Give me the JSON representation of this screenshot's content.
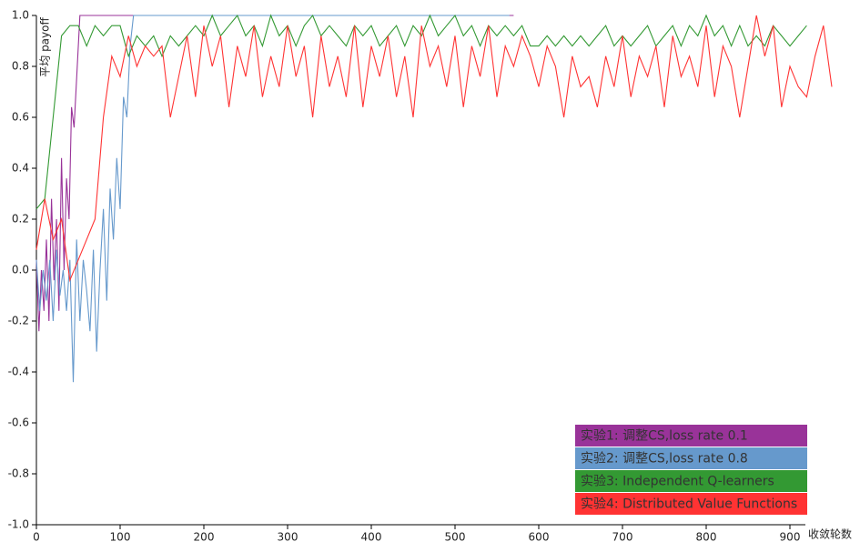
{
  "chart_data": {
    "type": "line",
    "ylabel": "平均 payoff",
    "xlabel": "收敛轮数",
    "xlim": [
      0,
      960
    ],
    "ylim": [
      -1.0,
      1.0
    ],
    "xticks": [
      0,
      100,
      200,
      300,
      400,
      500,
      600,
      700,
      800,
      900
    ],
    "yticks": [
      {
        "value": -1.0,
        "label": "-1.0"
      },
      -0.8,
      -0.6,
      -0.4,
      -0.2,
      {
        "value": 0.0,
        "label": "0.0"
      },
      0.2,
      0.4,
      0.6,
      0.8,
      {
        "value": 1.0,
        "label": "1.0"
      }
    ],
    "legend": "lower right",
    "series": [
      {
        "name": "实验1: 调整CS,loss rate 0.1",
        "color": "#993399",
        "x": [
          0,
          3,
          6,
          9,
          12,
          15,
          18,
          21,
          24,
          27,
          30,
          33,
          36,
          39,
          42,
          45,
          52,
          570
        ],
        "values": [
          0.04,
          -0.24,
          0.0,
          -0.16,
          0.12,
          -0.2,
          0.28,
          -0.04,
          0.2,
          -0.16,
          0.44,
          0.0,
          0.36,
          0.2,
          0.64,
          0.56,
          1.0,
          1.0
        ]
      },
      {
        "name": "实验2: 调整CS,loss rate 0.8",
        "color": "#6699cc",
        "x": [
          0,
          4,
          8,
          12,
          16,
          20,
          24,
          28,
          32,
          36,
          40,
          44,
          48,
          52,
          56,
          60,
          64,
          68,
          72,
          76,
          80,
          84,
          88,
          92,
          96,
          100,
          104,
          108,
          112,
          116,
          565
        ],
        "values": [
          0.04,
          -0.16,
          0.0,
          -0.12,
          0.04,
          -0.2,
          0.08,
          -0.1,
          0.0,
          -0.16,
          0.04,
          -0.44,
          0.12,
          -0.2,
          0.04,
          -0.08,
          -0.24,
          0.08,
          -0.32,
          0.0,
          0.24,
          -0.12,
          0.32,
          0.12,
          0.44,
          0.24,
          0.68,
          0.6,
          0.88,
          1.0,
          1.0
        ]
      },
      {
        "name": "实验3: Independent Q-learners",
        "color": "#339933",
        "x": [
          0,
          10,
          20,
          30,
          40,
          50,
          60,
          70,
          80,
          90,
          100,
          110,
          120,
          130,
          140,
          150,
          160,
          170,
          180,
          190,
          200,
          210,
          220,
          230,
          240,
          250,
          260,
          270,
          280,
          290,
          300,
          310,
          320,
          330,
          340,
          350,
          360,
          370,
          380,
          390,
          400,
          410,
          420,
          430,
          440,
          450,
          460,
          470,
          480,
          490,
          500,
          510,
          520,
          530,
          540,
          550,
          560,
          570,
          580,
          590,
          600,
          610,
          620,
          630,
          640,
          650,
          660,
          670,
          680,
          690,
          700,
          710,
          720,
          730,
          740,
          750,
          760,
          770,
          780,
          790,
          800,
          810,
          820,
          830,
          840,
          850,
          860,
          870,
          880,
          890,
          900,
          910,
          920
        ],
        "values": [
          0.24,
          0.28,
          0.6,
          0.92,
          0.96,
          0.96,
          0.88,
          0.96,
          0.92,
          0.96,
          0.96,
          0.84,
          0.92,
          0.88,
          0.92,
          0.84,
          0.92,
          0.88,
          0.92,
          0.96,
          0.92,
          1.0,
          0.92,
          0.96,
          1.0,
          0.92,
          0.96,
          0.88,
          1.0,
          0.92,
          0.96,
          0.88,
          0.96,
          1.0,
          0.92,
          0.96,
          0.92,
          0.88,
          0.96,
          0.92,
          0.96,
          0.88,
          0.92,
          0.96,
          0.88,
          0.96,
          0.92,
          1.0,
          0.92,
          0.96,
          1.0,
          0.92,
          0.96,
          0.88,
          0.96,
          0.92,
          0.96,
          0.92,
          0.96,
          0.88,
          0.88,
          0.92,
          0.88,
          0.92,
          0.88,
          0.92,
          0.88,
          0.92,
          0.96,
          0.88,
          0.92,
          0.88,
          0.92,
          0.96,
          0.88,
          0.92,
          0.96,
          0.88,
          0.96,
          0.92,
          1.0,
          0.92,
          0.96,
          0.88,
          0.96,
          0.88,
          0.92,
          0.88,
          0.96,
          0.92,
          0.88,
          0.92,
          0.96
        ]
      },
      {
        "name": "实验4: Distributed Value Functions",
        "color": "#ff3333",
        "x": [
          0,
          10,
          20,
          30,
          40,
          50,
          60,
          70,
          80,
          90,
          100,
          110,
          120,
          130,
          140,
          150,
          160,
          170,
          180,
          190,
          200,
          210,
          220,
          230,
          240,
          250,
          260,
          270,
          280,
          290,
          300,
          310,
          320,
          330,
          340,
          350,
          360,
          370,
          380,
          390,
          400,
          410,
          420,
          430,
          440,
          450,
          460,
          470,
          480,
          490,
          500,
          510,
          520,
          530,
          540,
          550,
          560,
          570,
          580,
          590,
          600,
          610,
          620,
          630,
          640,
          650,
          660,
          670,
          680,
          690,
          700,
          710,
          720,
          730,
          740,
          750,
          760,
          770,
          780,
          790,
          800,
          810,
          820,
          830,
          840,
          850,
          860,
          870,
          880,
          890,
          900,
          910,
          920,
          930,
          940,
          950
        ],
        "values": [
          0.08,
          0.28,
          0.12,
          0.2,
          -0.04,
          0.04,
          0.12,
          0.2,
          0.6,
          0.84,
          0.76,
          0.92,
          0.8,
          0.88,
          0.84,
          0.88,
          0.6,
          0.76,
          0.92,
          0.68,
          0.96,
          0.8,
          0.92,
          0.64,
          0.88,
          0.76,
          0.96,
          0.68,
          0.84,
          0.72,
          0.96,
          0.76,
          0.88,
          0.6,
          0.92,
          0.72,
          0.84,
          0.68,
          0.96,
          0.64,
          0.88,
          0.76,
          0.92,
          0.68,
          0.84,
          0.6,
          0.96,
          0.8,
          0.88,
          0.72,
          0.92,
          0.64,
          0.88,
          0.76,
          0.96,
          0.68,
          0.88,
          0.8,
          0.92,
          0.84,
          0.72,
          0.88,
          0.8,
          0.6,
          0.84,
          0.72,
          0.76,
          0.64,
          0.84,
          0.72,
          0.92,
          0.68,
          0.84,
          0.76,
          0.88,
          0.64,
          0.92,
          0.76,
          0.84,
          0.72,
          0.96,
          0.68,
          0.88,
          0.8,
          0.6,
          0.8,
          1.0,
          0.84,
          0.96,
          0.64,
          0.8,
          0.72,
          0.68,
          0.84,
          0.96,
          0.72
        ]
      }
    ]
  }
}
